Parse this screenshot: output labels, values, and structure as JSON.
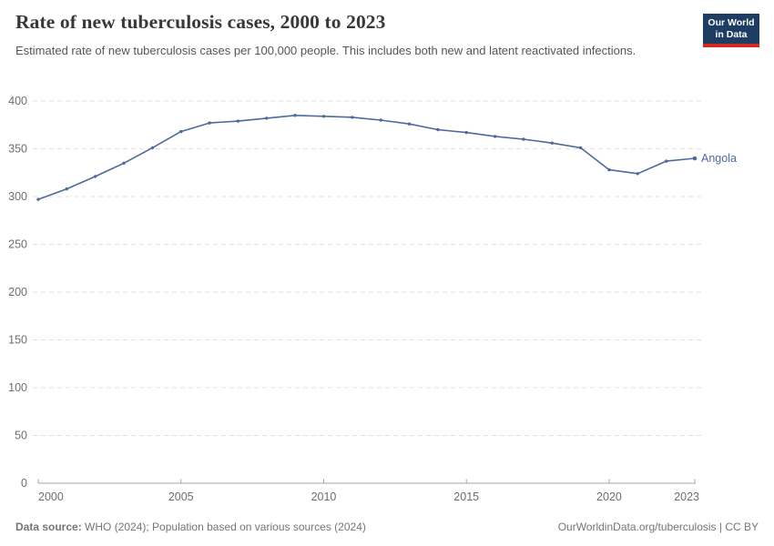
{
  "header": {
    "title": "Rate of new tuberculosis cases, 2000 to 2023",
    "subtitle": "Estimated rate of new tuberculosis cases per 100,000 people. This includes both new and latent reactivated infections."
  },
  "logo": {
    "line1": "Our World",
    "line2": "in Data",
    "bg_color": "#1d3d63",
    "bar_color": "#d42b21"
  },
  "footer": {
    "datasource_label": "Data source:",
    "datasource_text": " WHO (2024); Population based on various sources (2024)",
    "link": "OurWorldinData.org/tuberculosis | CC BY"
  },
  "chart_data": {
    "type": "line",
    "title": "Rate of new tuberculosis cases, 2000 to 2023",
    "xlabel": "",
    "ylabel": "",
    "x": [
      2000,
      2001,
      2002,
      2003,
      2004,
      2005,
      2006,
      2007,
      2008,
      2009,
      2010,
      2011,
      2012,
      2013,
      2014,
      2015,
      2016,
      2017,
      2018,
      2019,
      2020,
      2021,
      2022,
      2023
    ],
    "series": [
      {
        "name": "Angola",
        "color": "#4c6a9c",
        "values": [
          297,
          308,
          321,
          335,
          351,
          368,
          377,
          379,
          382,
          385,
          384,
          383,
          380,
          376,
          370,
          367,
          363,
          360,
          356,
          351,
          328,
          324,
          337,
          340
        ]
      }
    ],
    "ylim": [
      0,
      400
    ],
    "yticks": [
      0,
      50,
      100,
      150,
      200,
      250,
      300,
      350,
      400
    ],
    "xticks": [
      2000,
      2005,
      2010,
      2015,
      2020,
      2023
    ],
    "grid": "horizontal-dashed",
    "legend_position": "end-of-line",
    "colors": {
      "grid": "#e0e0e0",
      "axis": "#a5a5a5",
      "tick_label": "#6e6e6e"
    }
  }
}
